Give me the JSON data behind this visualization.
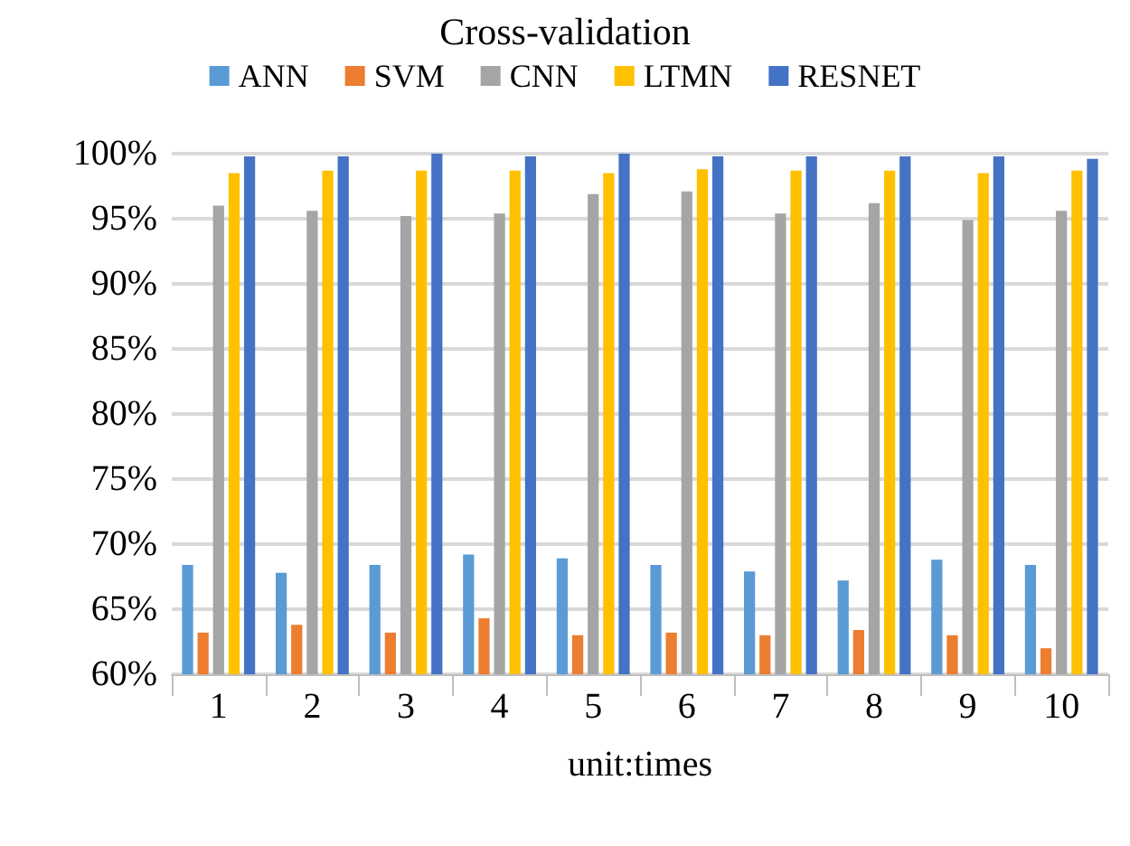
{
  "chart_data": {
    "type": "bar",
    "title": "Cross-validation",
    "xlabel": "unit:times",
    "categories": [
      "1",
      "2",
      "3",
      "4",
      "5",
      "6",
      "7",
      "8",
      "9",
      "10"
    ],
    "series": [
      {
        "name": "ANN",
        "color": "#5b9bd5",
        "values": [
          68.4,
          67.8,
          68.4,
          69.2,
          68.9,
          68.4,
          67.9,
          67.2,
          68.8,
          68.4
        ]
      },
      {
        "name": "SVM",
        "color": "#ed7d31",
        "values": [
          63.2,
          63.8,
          63.2,
          64.3,
          63.0,
          63.2,
          63.0,
          63.4,
          63.0,
          62.0
        ]
      },
      {
        "name": "CNN",
        "color": "#a5a5a5",
        "values": [
          96.0,
          95.6,
          95.2,
          95.4,
          96.9,
          97.1,
          95.4,
          96.2,
          94.9,
          95.6
        ]
      },
      {
        "name": "LTMN",
        "color": "#ffc000",
        "values": [
          98.5,
          98.7,
          98.7,
          98.7,
          98.5,
          98.8,
          98.7,
          98.7,
          98.5,
          98.7
        ]
      },
      {
        "name": "RESNET",
        "color": "#4472c4",
        "values": [
          99.8,
          99.8,
          100,
          99.8,
          100,
          99.8,
          99.8,
          99.8,
          99.8,
          99.6
        ]
      }
    ],
    "ylim": [
      60,
      100
    ],
    "yticks": [
      {
        "value": 60,
        "label": "60%"
      },
      {
        "value": 65,
        "label": "65%"
      },
      {
        "value": 70,
        "label": "70%"
      },
      {
        "value": 75,
        "label": "75%"
      },
      {
        "value": 80,
        "label": "80%"
      },
      {
        "value": 85,
        "label": "85%"
      },
      {
        "value": 90,
        "label": "90%"
      },
      {
        "value": 95,
        "label": "95%"
      },
      {
        "value": 100,
        "label": "100%"
      }
    ],
    "grid": "y",
    "legend": "top"
  }
}
